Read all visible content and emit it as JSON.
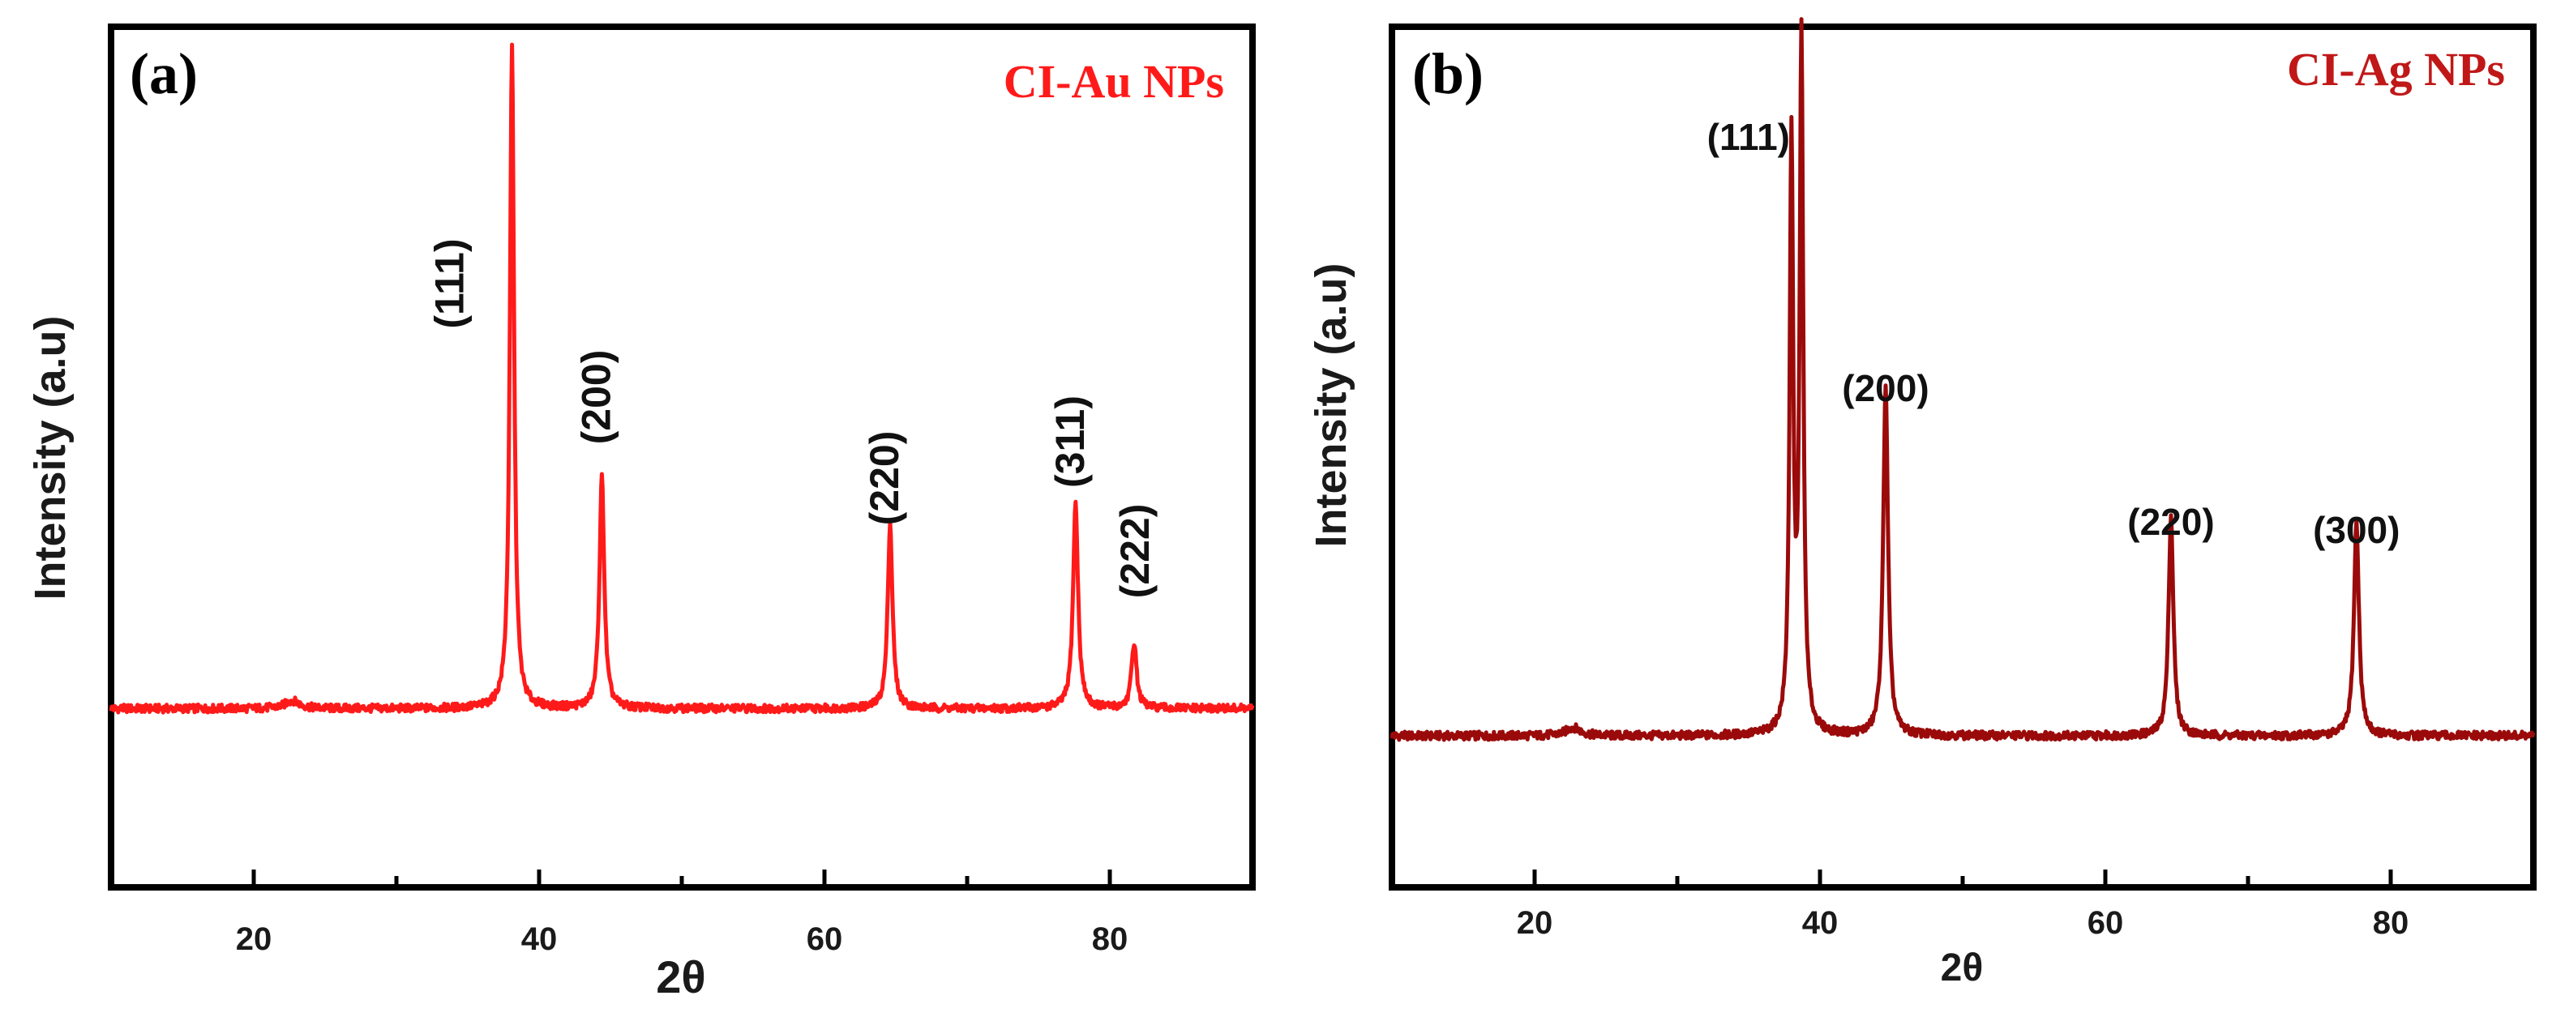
{
  "chart_data": [
    {
      "type": "line",
      "panel": "(a)",
      "title": "CI-Au NPs",
      "xlabel": "2θ",
      "ylabel": "Intensity (a.u)",
      "xlim": [
        10,
        90
      ],
      "ylim": [
        -0.25,
        1.05
      ],
      "xticks": [
        20,
        40,
        60,
        80
      ],
      "color": "#ff1a1a",
      "baseline": 0.02,
      "peaks": [
        {
          "x": 22.7,
          "height": 0.012,
          "width": 1.2
        },
        {
          "x": 38.1,
          "height": 1.0,
          "width": 0.35
        },
        {
          "x": 44.4,
          "height": 0.35,
          "width": 0.4
        },
        {
          "x": 64.6,
          "height": 0.28,
          "width": 0.4
        },
        {
          "x": 77.6,
          "height": 0.31,
          "width": 0.42
        },
        {
          "x": 81.7,
          "height": 0.1,
          "width": 0.42
        }
      ],
      "peak_labels": [
        {
          "text": "(111)",
          "x": 38.1
        },
        {
          "text": "(200)",
          "x": 44.4
        },
        {
          "text": "(220)",
          "x": 64.6
        },
        {
          "text": "(311)",
          "x": 77.6
        },
        {
          "text": "(222)",
          "x": 81.7
        }
      ]
    },
    {
      "type": "line",
      "panel": "(b)",
      "title": "CI-Ag NPs",
      "xlabel": "2θ",
      "ylabel": "Intensity (a.u)",
      "xlim": [
        10,
        90
      ],
      "ylim": [
        -0.2,
        1.05
      ],
      "xticks": [
        20,
        40,
        60,
        80
      ],
      "color": "#9b0a0a",
      "baseline": 0.02,
      "peaks": [
        {
          "x": 22.7,
          "height": 0.012,
          "width": 1.2
        },
        {
          "x": 38.0,
          "height": 0.85,
          "width": 0.3
        },
        {
          "x": 38.7,
          "height": 1.0,
          "width": 0.3
        },
        {
          "x": 44.6,
          "height": 0.51,
          "width": 0.4
        },
        {
          "x": 64.6,
          "height": 0.32,
          "width": 0.4
        },
        {
          "x": 77.6,
          "height": 0.31,
          "width": 0.42
        }
      ],
      "peak_labels": [
        {
          "text": "(111)",
          "x": 38.4
        },
        {
          "text": "(200)",
          "x": 44.6
        },
        {
          "text": "(220)",
          "x": 64.6
        },
        {
          "text": "(300)",
          "x": 77.6
        }
      ]
    }
  ]
}
